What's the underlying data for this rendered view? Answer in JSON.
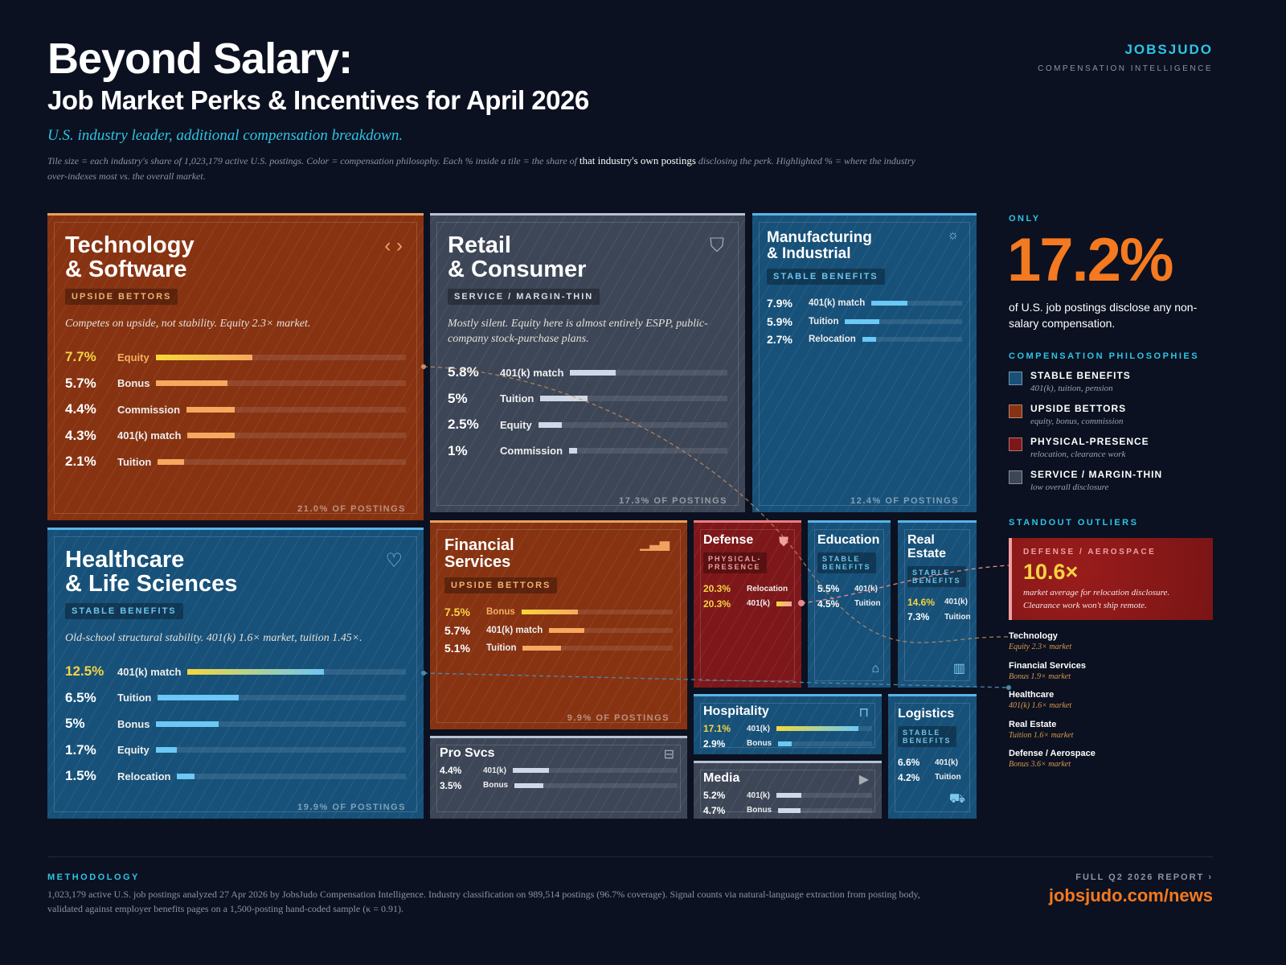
{
  "header": {
    "title": "Beyond Salary:",
    "subtitle": "Job Market Perks & Incentives for April 2026",
    "tagline": "U.S. industry leader, additional compensation breakdown.",
    "note_before": "Tile size = each industry's share of 1,023,179 active U.S. postings. Color = compensation philosophy. Each % inside a tile = the share of",
    "note_bold": "that industry's own postings",
    "note_after": "disclosing the perk. Highlighted % = where the industry over-indexes most vs. the overall market."
  },
  "brand": {
    "name": "JOBSJUDO",
    "sub": "COMPENSATION INTELLIGENCE"
  },
  "colors": {
    "upside": "#873312",
    "stable": "#175179",
    "physical": "#7e1719",
    "service": "#3d4657",
    "accent": "#2ec4e6",
    "highlight": "#f5d442",
    "orange": "#f47920"
  },
  "bar_scale_max_pct": 20,
  "tiles": [
    {
      "id": "technology",
      "name": "Technology\n& Software",
      "philosophy": "upside",
      "badge": "UPSIDE BETTORS",
      "icon": "code-icon",
      "desc": "Competes on upside, not stability. Equity 2.3× market.",
      "share": "21.0% OF POSTINGS",
      "perks": [
        {
          "pct": "7.7%",
          "value": 7.7,
          "label": "Equity",
          "highlight": true
        },
        {
          "pct": "5.7%",
          "value": 5.7,
          "label": "Bonus"
        },
        {
          "pct": "4.4%",
          "value": 4.4,
          "label": "Commission"
        },
        {
          "pct": "4.3%",
          "value": 4.3,
          "label": "401(k) match"
        },
        {
          "pct": "2.1%",
          "value": 2.1,
          "label": "Tuition"
        }
      ]
    },
    {
      "id": "retail",
      "name": "Retail\n& Consumer",
      "philosophy": "service",
      "badge": "SERVICE / MARGIN-THIN",
      "icon": "shopping-bag-icon",
      "desc": "Mostly silent. Equity here is almost entirely ESPP, public-company stock-purchase plans.",
      "share": "17.3% OF POSTINGS",
      "perks": [
        {
          "pct": "5.8%",
          "value": 5.8,
          "label": "401(k) match"
        },
        {
          "pct": "5%",
          "value": 5,
          "label": "Tuition"
        },
        {
          "pct": "2.5%",
          "value": 2.5,
          "label": "Equity"
        },
        {
          "pct": "1%",
          "value": 1,
          "label": "Commission"
        }
      ]
    },
    {
      "id": "manufacturing",
      "name": "Manufacturing\n& Industrial",
      "philosophy": "stable",
      "badge": "STABLE BENEFITS",
      "icon": "gear-icon",
      "share": "12.4% OF POSTINGS",
      "perks": [
        {
          "pct": "7.9%",
          "value": 7.9,
          "label": "401(k) match"
        },
        {
          "pct": "5.9%",
          "value": 5.9,
          "label": "Tuition"
        },
        {
          "pct": "2.7%",
          "value": 2.7,
          "label": "Relocation"
        }
      ]
    },
    {
      "id": "healthcare",
      "name": "Healthcare\n& Life Sciences",
      "philosophy": "stable",
      "badge": "STABLE BENEFITS",
      "icon": "heart-pulse-icon",
      "desc": "Old-school structural stability. 401(k) 1.6× market, tuition 1.45×.",
      "share": "19.9% OF POSTINGS",
      "perks": [
        {
          "pct": "12.5%",
          "value": 12.5,
          "label": "401(k) match",
          "highlight": true
        },
        {
          "pct": "6.5%",
          "value": 6.5,
          "label": "Tuition"
        },
        {
          "pct": "5%",
          "value": 5,
          "label": "Bonus"
        },
        {
          "pct": "1.7%",
          "value": 1.7,
          "label": "Equity"
        },
        {
          "pct": "1.5%",
          "value": 1.5,
          "label": "Relocation"
        }
      ]
    },
    {
      "id": "financial",
      "name": "Financial\nServices",
      "philosophy": "upside",
      "badge": "UPSIDE BETTORS",
      "icon": "bar-chart-icon",
      "share": "9.9% OF POSTINGS",
      "perks": [
        {
          "pct": "7.5%",
          "value": 7.5,
          "label": "Bonus",
          "highlight": true
        },
        {
          "pct": "5.7%",
          "value": 5.7,
          "label": "401(k) match"
        },
        {
          "pct": "5.1%",
          "value": 5.1,
          "label": "Tuition"
        }
      ]
    },
    {
      "id": "prosvcs",
      "name": "Pro Svcs",
      "philosophy": "service",
      "icon": "briefcase-icon",
      "perks": [
        {
          "pct": "4.4%",
          "value": 4.4,
          "label": "401(k)"
        },
        {
          "pct": "3.5%",
          "value": 3.5,
          "label": "Bonus"
        }
      ]
    },
    {
      "id": "defense",
      "name": "Defense",
      "philosophy": "physical",
      "badge": "PHYSICAL-\nPRESENCE",
      "icon": "shield-star-icon",
      "perks": [
        {
          "pct": "20.3%",
          "value": 20.3,
          "label": "Relocation",
          "highlight": true
        },
        {
          "pct": "20.3%",
          "value": 20.3,
          "label": "401(k)",
          "highlight": true
        }
      ]
    },
    {
      "id": "education",
      "name": "Education",
      "philosophy": "stable",
      "badge": "STABLE\nBENEFITS",
      "icon": "graduation-cap-icon",
      "perks": [
        {
          "pct": "5.5%",
          "value": 5.5,
          "label": "401(k)"
        },
        {
          "pct": "4.5%",
          "value": 4.5,
          "label": "Tuition"
        }
      ]
    },
    {
      "id": "realestate",
      "name": "Real\nEstate",
      "philosophy": "stable",
      "badge": "STABLE\nBENEFITS",
      "icon": "building-icon",
      "perks": [
        {
          "pct": "14.6%",
          "value": 14.6,
          "label": "401(k)",
          "highlight": true
        },
        {
          "pct": "7.3%",
          "value": 7.3,
          "label": "Tuition"
        }
      ]
    },
    {
      "id": "hospitality",
      "name": "Hospitality",
      "philosophy": "stable",
      "icon": "bed-icon",
      "perks": [
        {
          "pct": "17.1%",
          "value": 17.1,
          "label": "401(k)",
          "highlight": true
        },
        {
          "pct": "2.9%",
          "value": 2.9,
          "label": "Bonus"
        }
      ]
    },
    {
      "id": "media",
      "name": "Media",
      "philosophy": "service",
      "icon": "video-icon",
      "perks": [
        {
          "pct": "5.2%",
          "value": 5.2,
          "label": "401(k)"
        },
        {
          "pct": "4.7%",
          "value": 4.7,
          "label": "Bonus"
        }
      ]
    },
    {
      "id": "logistics",
      "name": "Logistics",
      "philosophy": "stable",
      "badge": "STABLE\nBENEFITS",
      "icon": "truck-icon",
      "perks": [
        {
          "pct": "6.6%",
          "value": 6.6,
          "label": "401(k)"
        },
        {
          "pct": "4.2%",
          "value": 4.2,
          "label": "Tuition"
        }
      ]
    }
  ],
  "sidebar": {
    "only": "ONLY",
    "big_stat": "17.2%",
    "big_text": "of U.S. job postings disclose any non-salary compensation.",
    "philosophies_heading": "COMPENSATION PHILOSOPHIES",
    "philosophies": [
      {
        "name": "STABLE BENEFITS",
        "desc": "401(k), tuition, pension",
        "color": "#175179"
      },
      {
        "name": "UPSIDE BETTORS",
        "desc": "equity, bonus, commission",
        "color": "#873312"
      },
      {
        "name": "PHYSICAL-PRESENCE",
        "desc": "relocation, clearance work",
        "color": "#7e1719"
      },
      {
        "name": "SERVICE / MARGIN-THIN",
        "desc": "low overall disclosure",
        "color": "#3d4657"
      }
    ],
    "outliers_heading": "STANDOUT OUTLIERS",
    "featured": {
      "kicker": "DEFENSE / AEROSPACE",
      "value": "10.6×",
      "text": "market average for relocation disclosure. Clearance work won't ship remote."
    },
    "outliers": [
      {
        "name": "Technology",
        "desc": "Equity 2.3× market"
      },
      {
        "name": "Financial Services",
        "desc": "Bonus 1.9× market"
      },
      {
        "name": "Healthcare",
        "desc": "401(k) 1.6× market"
      },
      {
        "name": "Real Estate",
        "desc": "Tuition 1.6× market"
      },
      {
        "name": "Defense / Aerospace",
        "desc": "Bonus 3.6× market"
      }
    ]
  },
  "footer": {
    "methodology_heading": "METHODOLOGY",
    "methodology": "1,023,179 active U.S. job postings analyzed 27 Apr 2026 by JobsJudo Compensation Intelligence. Industry classification on 989,514 postings (96.7% coverage). Signal counts via natural-language extraction from posting body, validated against employer benefits pages on a 1,500-posting hand-coded sample (κ = 0.91).",
    "report_label": "FULL Q2 2026 REPORT ›",
    "url": "jobsjudo.com/news"
  }
}
